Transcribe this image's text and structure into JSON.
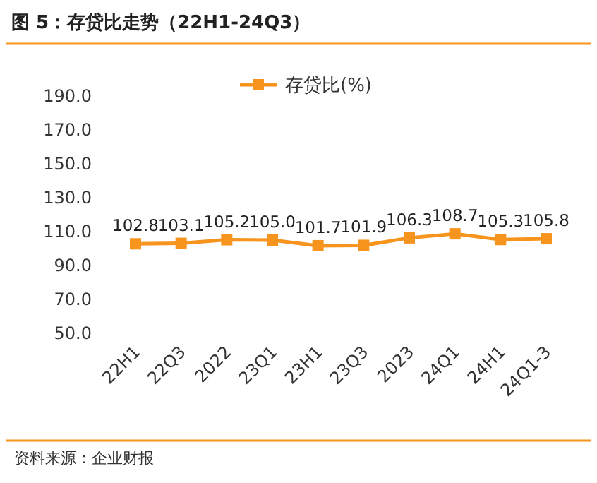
{
  "chart_data": {
    "type": "line",
    "title": "图 5：存贷比走势（22H1-24Q3）",
    "annotations": [
      "资料来源：企业财报"
    ],
    "categories": [
      "22H1",
      "22Q3",
      "2022",
      "23Q1",
      "23H1",
      "23Q3",
      "2023",
      "24Q1",
      "24H1",
      "24Q1-3"
    ],
    "series": [
      {
        "name": "存贷比(%)",
        "color": "#f7941d",
        "values": [
          102.8,
          103.1,
          105.2,
          105.0,
          101.7,
          101.9,
          106.3,
          108.7,
          105.3,
          105.8
        ],
        "value_labels": [
          "102.8",
          "103.1",
          "105.2",
          "105.0",
          "101.7",
          "101.9",
          "106.3",
          "108.7",
          "105.3",
          "105.8"
        ]
      }
    ],
    "ylim": [
      50,
      190
    ],
    "yticks": [
      {
        "value": 50,
        "label": "50.0"
      },
      {
        "value": 70,
        "label": "70.0"
      },
      {
        "value": 90,
        "label": "90.0"
      },
      {
        "value": 110,
        "label": "110.0"
      },
      {
        "value": 130,
        "label": "130.0"
      },
      {
        "value": 150,
        "label": "150.0"
      },
      {
        "value": 170,
        "label": "170.0"
      },
      {
        "value": 190,
        "label": "190.0"
      }
    ],
    "legend": "top",
    "marker": "square",
    "line_style": "solid",
    "grid": false
  }
}
